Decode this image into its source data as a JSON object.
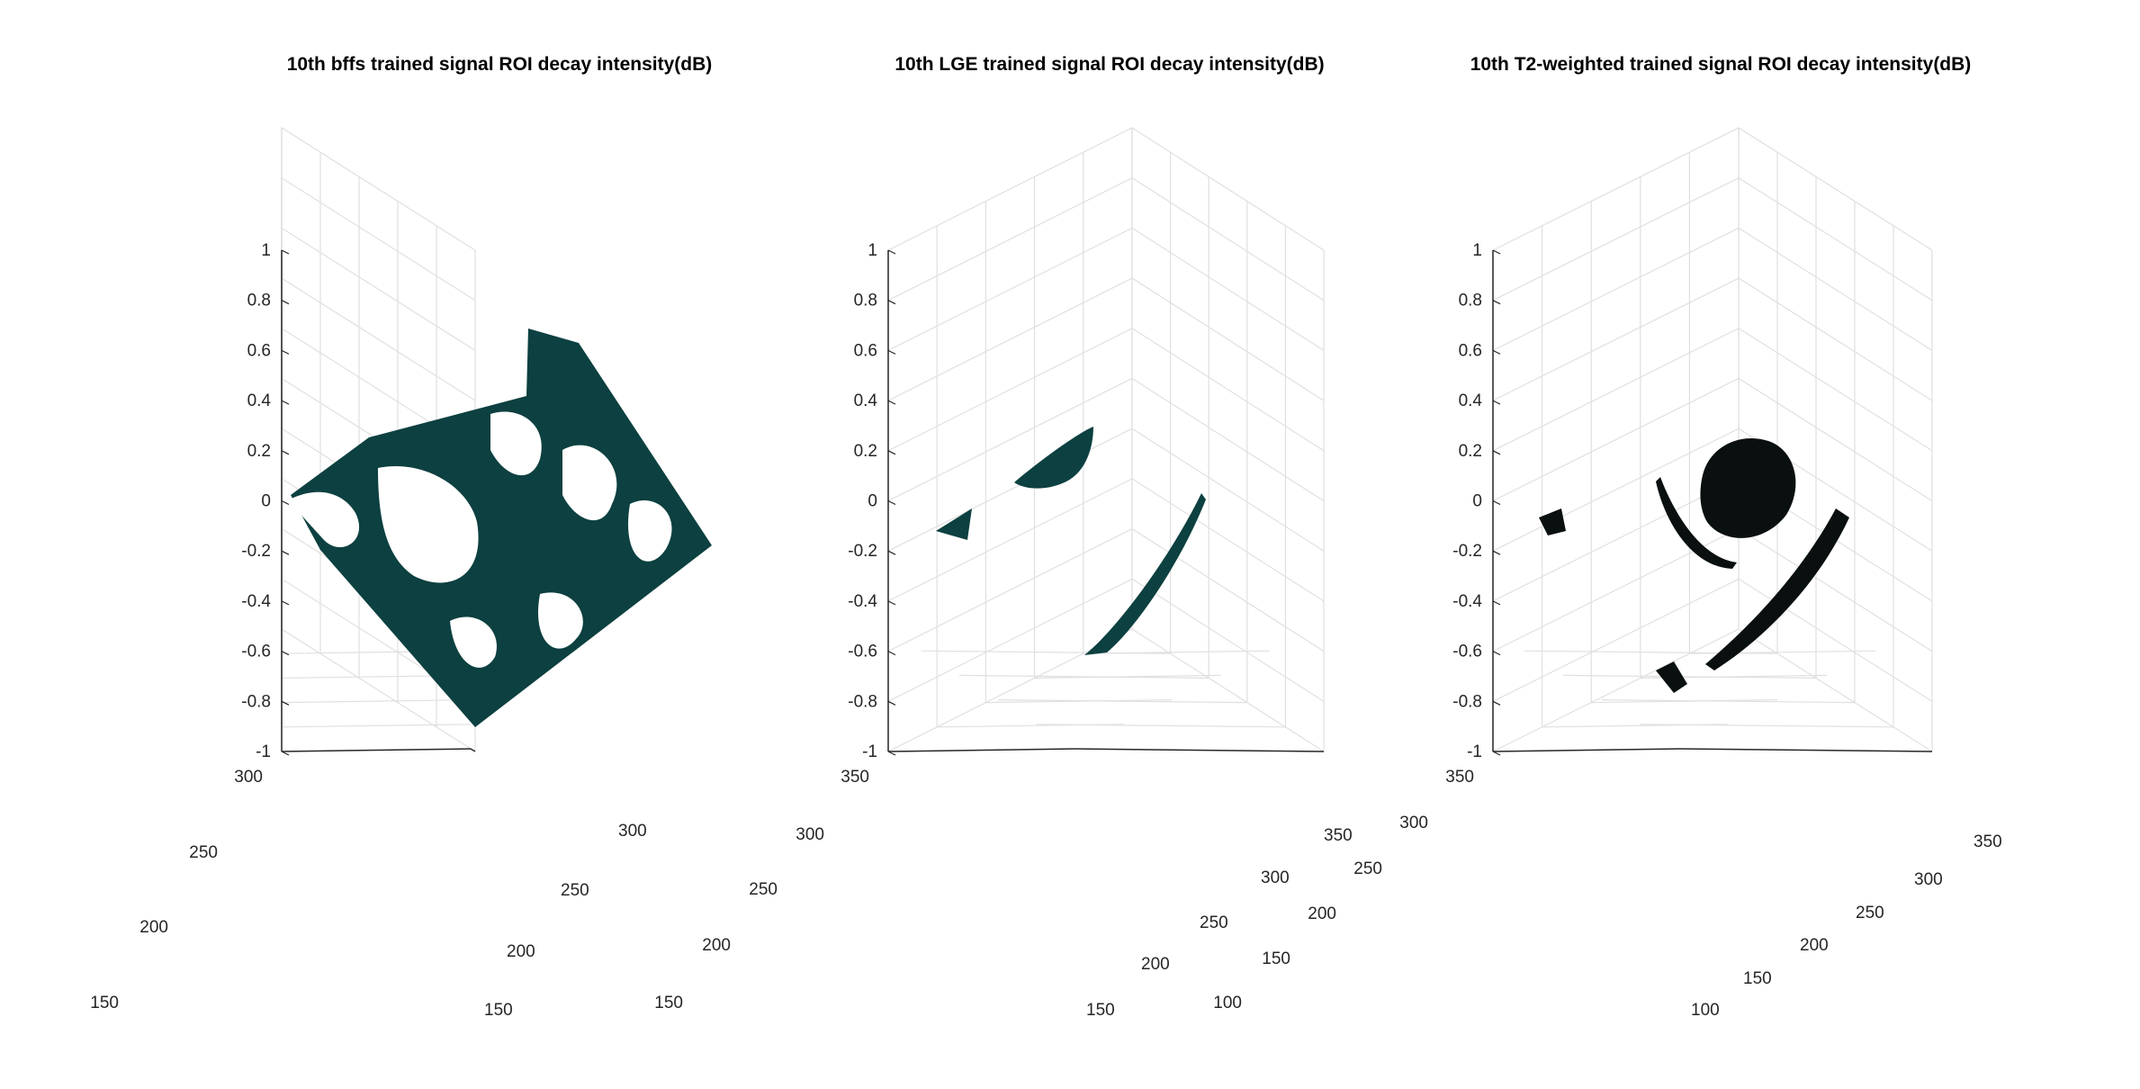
{
  "figure": {
    "colors": {
      "surface": "#0d4040",
      "surface_dark": "#0a0f0f",
      "grid": "#e0e0e0",
      "axis": "#262626"
    }
  },
  "chart_data": [
    {
      "type": "surface3d",
      "title": "10th bffs trained signal ROI decay intensity(dB)",
      "zlim": [
        -1,
        1
      ],
      "zticks": [
        "1",
        "0.8",
        "0.6",
        "0.4",
        "0.2",
        "0",
        "-0.2",
        "-0.4",
        "-0.6",
        "-0.8",
        "-1"
      ],
      "left_axis_ticks": [
        "300",
        "250",
        "200",
        "150"
      ],
      "right_axis_ticks": [
        "150",
        "200",
        "250",
        "300"
      ],
      "grid": true,
      "surface_color": "#0d4040",
      "description_z": 0
    },
    {
      "type": "surface3d",
      "title": "10th LGE trained signal ROI decay intensity(dB)",
      "zlim": [
        -1,
        1
      ],
      "zticks": [
        "1",
        "0.8",
        "0.6",
        "0.4",
        "0.2",
        "0",
        "-0.2",
        "-0.4",
        "-0.6",
        "-0.8",
        "-1"
      ],
      "left_axis_ticks": [
        "350",
        "300",
        "250",
        "200",
        "150"
      ],
      "right_axis_ticks": [
        "150",
        "200",
        "250",
        "300",
        "350"
      ],
      "grid": true,
      "surface_color": "#0d4040",
      "description_z": 0
    },
    {
      "type": "surface3d",
      "title": "10th T2-weighted trained signal ROI decay intensity(dB)",
      "zlim": [
        -1,
        1
      ],
      "zticks": [
        "1",
        "0.8",
        "0.6",
        "0.4",
        "0.2",
        "0",
        "-0.2",
        "-0.4",
        "-0.6",
        "-0.8",
        "-1"
      ],
      "left_axis_ticks": [
        "350",
        "300",
        "250",
        "200",
        "150",
        "100"
      ],
      "right_axis_ticks": [
        "100",
        "150",
        "200",
        "250",
        "300",
        "350"
      ],
      "grid": true,
      "surface_color": "#0a0f0f",
      "description_z": 0
    }
  ]
}
